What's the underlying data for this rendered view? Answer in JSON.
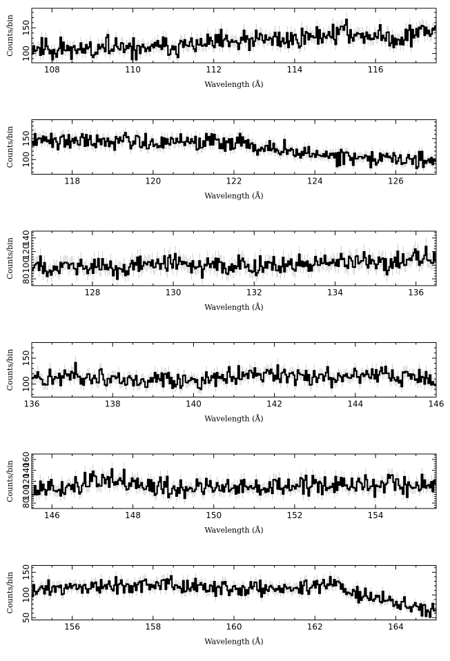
{
  "chart_data": [
    {
      "type": "line",
      "xlabel": "Wavelength (Å)",
      "ylabel": "Counts/bin",
      "xlim": [
        107.5,
        117.5
      ],
      "ylim": [
        82,
        188
      ],
      "xticks": [
        108,
        110,
        112,
        114,
        116
      ],
      "yticks": [
        100,
        150
      ],
      "trend": [
        [
          107.5,
          112
        ],
        [
          110,
          108
        ],
        [
          112,
          119
        ],
        [
          114,
          129
        ],
        [
          115.2,
          142
        ],
        [
          116.5,
          128
        ],
        [
          117.5,
          148
        ]
      ],
      "noise_amplitude": 16,
      "seed": 11
    },
    {
      "type": "line",
      "xlabel": "Wavelength (Å)",
      "ylabel": "Counts/bin",
      "xlim": [
        117,
        127
      ],
      "ylim": [
        65,
        195
      ],
      "xticks": [
        118,
        120,
        122,
        124,
        126
      ],
      "yticks": [
        100,
        150
      ],
      "trend": [
        [
          117,
          145
        ],
        [
          118.6,
          148
        ],
        [
          120,
          142
        ],
        [
          121.5,
          142
        ],
        [
          122.5,
          130
        ],
        [
          123.5,
          122
        ],
        [
          124.5,
          108
        ],
        [
          126,
          102
        ],
        [
          127,
          95
        ]
      ],
      "noise_amplitude": 16,
      "seed": 22
    },
    {
      "type": "line",
      "xlabel": "Wavelength (Å)",
      "ylabel": "Counts/bin",
      "xlim": [
        126.5,
        136.5
      ],
      "ylim": [
        70,
        150
      ],
      "xticks": [
        128,
        130,
        132,
        134,
        136
      ],
      "yticks": [
        80,
        100,
        120,
        140
      ],
      "trend": [
        [
          126.5,
          100
        ],
        [
          128,
          98
        ],
        [
          130,
          101
        ],
        [
          132,
          98
        ],
        [
          134,
          103
        ],
        [
          135.5,
          107
        ],
        [
          136.5,
          114
        ]
      ],
      "noise_amplitude": 11,
      "seed": 33
    },
    {
      "type": "line",
      "xlabel": "Wavelength (Å)",
      "ylabel": "Counts/bin",
      "xlim": [
        136,
        146
      ],
      "ylim": [
        75,
        180
      ],
      "xticks": [
        136,
        138,
        140,
        142,
        144,
        146
      ],
      "yticks": [
        100,
        150
      ],
      "trend": [
        [
          136,
          112
        ],
        [
          138,
          110
        ],
        [
          140,
          104
        ],
        [
          141.5,
          118
        ],
        [
          143,
          114
        ],
        [
          145,
          118
        ],
        [
          146,
          104
        ]
      ],
      "noise_amplitude": 14,
      "seed": 44
    },
    {
      "type": "line",
      "xlabel": "Wavelength (Å)",
      "ylabel": "Counts/bin",
      "xlim": [
        145.5,
        155.5
      ],
      "ylim": [
        70,
        170
      ],
      "xticks": [
        146,
        148,
        150,
        152,
        154
      ],
      "yticks": [
        80,
        100,
        120,
        140,
        160
      ],
      "trend": [
        [
          145.5,
          104
        ],
        [
          147.3,
          120
        ],
        [
          149,
          108
        ],
        [
          151,
          110
        ],
        [
          153,
          114
        ],
        [
          155.5,
          110
        ]
      ],
      "noise_amplitude": 14,
      "seed": 55
    },
    {
      "type": "line",
      "xlabel": "Wavelength (Å)",
      "ylabel": "Counts/bin",
      "xlim": [
        155,
        165
      ],
      "ylim": [
        45,
        165
      ],
      "xticks": [
        156,
        158,
        160,
        162,
        164
      ],
      "yticks": [
        50,
        100,
        150
      ],
      "trend": [
        [
          155,
          112
        ],
        [
          157.8,
          124
        ],
        [
          160,
          114
        ],
        [
          161.5,
          112
        ],
        [
          162.3,
          130
        ],
        [
          163,
          105
        ],
        [
          164,
          84
        ],
        [
          164.5,
          70
        ],
        [
          165,
          64
        ]
      ],
      "noise_amplitude": 13,
      "seed": 66
    }
  ]
}
